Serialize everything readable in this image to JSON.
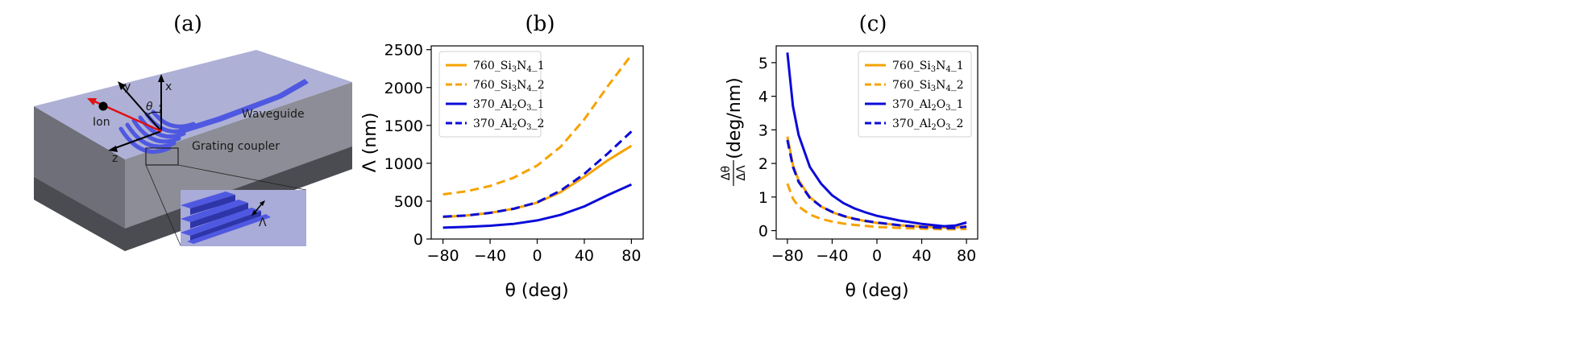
{
  "figure": {
    "panel_labels": [
      "(a)",
      "(b)",
      "(c)"
    ]
  },
  "schematic": {
    "labels": {
      "waveguide": "Waveguide",
      "grating_coupler": "Grating coupler",
      "ion": "Ion",
      "axis_x": "x",
      "axis_y": "y",
      "axis_z": "z",
      "theta": "θ",
      "period": "Λ"
    },
    "colors": {
      "chip_top": "#aeb0d6",
      "chip_side": "#7d7f8a",
      "chip_base": "#595a60",
      "waveguide": "#4f58e0",
      "beam": "#e01010",
      "inset_bg": "#a9abd8"
    }
  },
  "chart_data": [
    {
      "id": "b",
      "type": "line",
      "xlabel": "θ (deg)",
      "ylabel": "Λ (nm)",
      "xlim": [
        -90,
        90
      ],
      "ylim": [
        0,
        2550
      ],
      "xticks": [
        -80,
        -40,
        0,
        40,
        80
      ],
      "xticklabels": [
        "−80",
        "−40",
        "0",
        "40",
        "80"
      ],
      "yticks": [
        0,
        500,
        1000,
        1500,
        2000,
        2500
      ],
      "yticklabels": [
        "0",
        "500",
        "1000",
        "1500",
        "2000",
        "2500"
      ],
      "legend_position": "upper-left",
      "x": [
        -80,
        -60,
        -40,
        -20,
        0,
        20,
        40,
        60,
        80
      ],
      "series": [
        {
          "name": "760_Si3N4_1",
          "legend": [
            "760_Si",
            "3",
            "N",
            "4",
            "_1"
          ],
          "color": "#f5a300",
          "dash": "solid",
          "values": [
            290,
            310,
            345,
            400,
            480,
            620,
            820,
            1040,
            1230
          ]
        },
        {
          "name": "760_Si3N4_2",
          "legend": [
            "760_Si",
            "3",
            "N",
            "4",
            "_2"
          ],
          "color": "#f5a300",
          "dash": "dashed",
          "values": [
            590,
            630,
            700,
            810,
            970,
            1220,
            1580,
            2020,
            2430
          ]
        },
        {
          "name": "370_Al2O3_1",
          "legend": [
            "370_Al",
            "2",
            "O",
            "3",
            "_1"
          ],
          "color": "#0b0bd8",
          "dash": "solid",
          "values": [
            150,
            160,
            175,
            200,
            245,
            320,
            430,
            580,
            720
          ]
        },
        {
          "name": "370_Al2O3_2",
          "legend": [
            "370_Al",
            "2",
            "O",
            "3",
            "_2"
          ],
          "color": "#0b0bd8",
          "dash": "dashed",
          "values": [
            295,
            310,
            345,
            400,
            485,
            640,
            860,
            1130,
            1420
          ]
        }
      ]
    },
    {
      "id": "c",
      "type": "line",
      "xlabel": "θ (deg)",
      "ylabel": "Δθ / ΔΛ (deg/nm)",
      "ylabel_parts": {
        "num": "Δθ",
        "den": "ΔΛ",
        "unit": "(deg/nm)"
      },
      "xlim": [
        -90,
        90
      ],
      "ylim": [
        -0.25,
        5.5
      ],
      "xticks": [
        -80,
        -40,
        0,
        40,
        80
      ],
      "xticklabels": [
        "−80",
        "−40",
        "0",
        "40",
        "80"
      ],
      "yticks": [
        0,
        1,
        2,
        3,
        4,
        5
      ],
      "yticklabels": [
        "0",
        "1",
        "2",
        "3",
        "4",
        "5"
      ],
      "legend_position": "upper-right",
      "x": [
        -80,
        -75,
        -70,
        -60,
        -50,
        -40,
        -30,
        -20,
        -10,
        0,
        20,
        40,
        60,
        70,
        80
      ],
      "series": [
        {
          "name": "760_Si3N4_1",
          "legend": [
            "760_Si",
            "3",
            "N",
            "4",
            "_1"
          ],
          "color": "#f5a300",
          "dash": "solid",
          "values": [
            2.8,
            1.95,
            1.5,
            1.0,
            0.72,
            0.55,
            0.43,
            0.35,
            0.28,
            0.23,
            0.16,
            0.12,
            0.09,
            0.09,
            0.13
          ]
        },
        {
          "name": "760_Si3N4_2",
          "legend": [
            "760_Si",
            "3",
            "N",
            "4",
            "_2"
          ],
          "color": "#f5a300",
          "dash": "dashed",
          "values": [
            1.4,
            0.95,
            0.72,
            0.48,
            0.35,
            0.27,
            0.21,
            0.17,
            0.14,
            0.11,
            0.08,
            0.06,
            0.04,
            0.04,
            0.05
          ]
        },
        {
          "name": "370_Al2O3_1",
          "legend": [
            "370_Al",
            "2",
            "O",
            "3",
            "_1"
          ],
          "color": "#0b0bd8",
          "dash": "solid",
          "values": [
            5.3,
            3.7,
            2.85,
            1.9,
            1.4,
            1.05,
            0.82,
            0.66,
            0.54,
            0.44,
            0.3,
            0.2,
            0.13,
            0.15,
            0.24
          ]
        },
        {
          "name": "370_Al2O3_2",
          "legend": [
            "370_Al",
            "2",
            "O",
            "3",
            "_2"
          ],
          "color": "#0b0bd8",
          "dash": "dashed",
          "values": [
            2.7,
            1.9,
            1.45,
            0.98,
            0.72,
            0.56,
            0.44,
            0.35,
            0.29,
            0.24,
            0.16,
            0.11,
            0.08,
            0.08,
            0.12
          ]
        }
      ]
    }
  ]
}
